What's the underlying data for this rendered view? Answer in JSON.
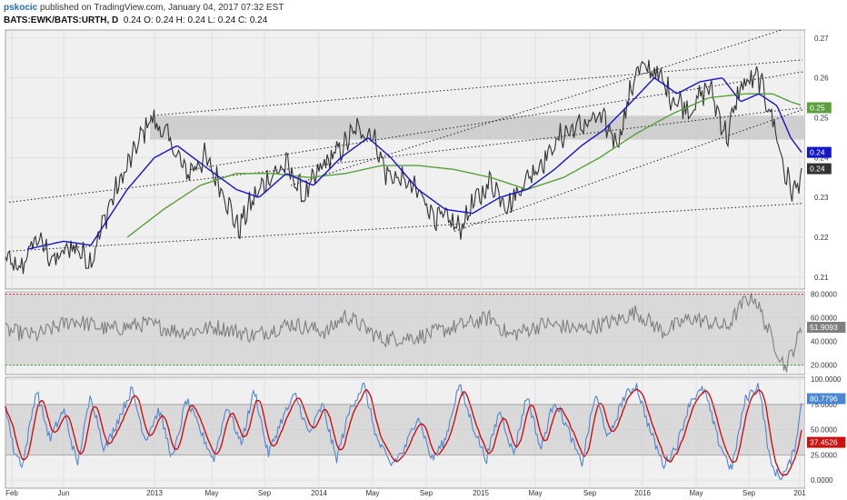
{
  "header": {
    "user": "pskocic",
    "published_text": "published on TradingView.com, January 04, 2017 07:32 EST",
    "symbol": "BATS:EWK/BATS:URTH, D",
    "ohlc_text": "0.24 O: 0.24 H: 0.24 L: 0.24 C: 0.24"
  },
  "colors": {
    "price": "#333333",
    "ma_fast": "#1414c8",
    "ma_slow": "#5aa03c",
    "rsi": "#7f7f7f",
    "stoch_k": "#4a86d6",
    "stoch_d": "#cc1111",
    "band": "#c9c9c9",
    "rsi_upper": "#e02020",
    "rsi_lower": "#2f9e2f",
    "bg": "#f0f0f0"
  },
  "chart_data": [
    {
      "type": "line",
      "panel": "price",
      "x_tick_labels": [
        "Feb",
        "Jun",
        "2013",
        "May",
        "Sep",
        "2014",
        "May",
        "Sep",
        "2015",
        "May",
        "Sep",
        "2016",
        "May",
        "Sep",
        "201"
      ],
      "y_tick_labels": [
        "0.27",
        "0.26",
        "0.25",
        "0.24",
        "0.23",
        "0.22",
        "0.21"
      ],
      "ylim": [
        0.207,
        0.272
      ],
      "price_anchors": [
        [
          0,
          0.217
        ],
        [
          20,
          0.211
        ],
        [
          40,
          0.22
        ],
        [
          60,
          0.214
        ],
        [
          80,
          0.218
        ],
        [
          100,
          0.214
        ],
        [
          120,
          0.228
        ],
        [
          145,
          0.24
        ],
        [
          165,
          0.25
        ],
        [
          185,
          0.245
        ],
        [
          205,
          0.236
        ],
        [
          225,
          0.24
        ],
        [
          245,
          0.232
        ],
        [
          262,
          0.222
        ],
        [
          275,
          0.228
        ],
        [
          295,
          0.235
        ],
        [
          315,
          0.238
        ],
        [
          335,
          0.23
        ],
        [
          355,
          0.238
        ],
        [
          375,
          0.242
        ],
        [
          392,
          0.247
        ],
        [
          410,
          0.246
        ],
        [
          425,
          0.236
        ],
        [
          445,
          0.234
        ],
        [
          465,
          0.23
        ],
        [
          480,
          0.225
        ],
        [
          495,
          0.224
        ],
        [
          505,
          0.222
        ],
        [
          520,
          0.228
        ],
        [
          540,
          0.234
        ],
        [
          560,
          0.228
        ],
        [
          580,
          0.235
        ],
        [
          600,
          0.24
        ],
        [
          620,
          0.246
        ],
        [
          640,
          0.248
        ],
        [
          660,
          0.25
        ],
        [
          680,
          0.244
        ],
        [
          700,
          0.262
        ],
        [
          720,
          0.262
        ],
        [
          740,
          0.255
        ],
        [
          760,
          0.252
        ],
        [
          780,
          0.258
        ],
        [
          800,
          0.245
        ],
        [
          815,
          0.258
        ],
        [
          835,
          0.26
        ],
        [
          850,
          0.25
        ],
        [
          865,
          0.235
        ],
        [
          874,
          0.231
        ],
        [
          883,
          0.237
        ]
      ],
      "ma_fast_anchors": [
        [
          30,
          0.217
        ],
        [
          70,
          0.219
        ],
        [
          100,
          0.218
        ],
        [
          140,
          0.232
        ],
        [
          170,
          0.24
        ],
        [
          195,
          0.243
        ],
        [
          230,
          0.237
        ],
        [
          260,
          0.232
        ],
        [
          285,
          0.23
        ],
        [
          315,
          0.236
        ],
        [
          345,
          0.233
        ],
        [
          375,
          0.24
        ],
        [
          405,
          0.245
        ],
        [
          430,
          0.24
        ],
        [
          460,
          0.232
        ],
        [
          490,
          0.227
        ],
        [
          520,
          0.226
        ],
        [
          550,
          0.23
        ],
        [
          580,
          0.232
        ],
        [
          610,
          0.237
        ],
        [
          640,
          0.243
        ],
        [
          665,
          0.247
        ],
        [
          695,
          0.254
        ],
        [
          720,
          0.26
        ],
        [
          745,
          0.256
        ],
        [
          770,
          0.259
        ],
        [
          795,
          0.26
        ],
        [
          815,
          0.254
        ],
        [
          835,
          0.256
        ],
        [
          855,
          0.253
        ],
        [
          870,
          0.245
        ],
        [
          883,
          0.241
        ]
      ],
      "ma_slow_anchors": [
        [
          140,
          0.22
        ],
        [
          180,
          0.227
        ],
        [
          220,
          0.233
        ],
        [
          260,
          0.236
        ],
        [
          300,
          0.236
        ],
        [
          340,
          0.235
        ],
        [
          380,
          0.236
        ],
        [
          420,
          0.238
        ],
        [
          460,
          0.238
        ],
        [
          500,
          0.237
        ],
        [
          540,
          0.235
        ],
        [
          580,
          0.232
        ],
        [
          620,
          0.235
        ],
        [
          660,
          0.24
        ],
        [
          700,
          0.246
        ],
        [
          740,
          0.251
        ],
        [
          780,
          0.255
        ],
        [
          820,
          0.256
        ],
        [
          850,
          0.256
        ],
        [
          870,
          0.254
        ],
        [
          883,
          0.253
        ]
      ],
      "band": [
        0.2445,
        0.2505
      ],
      "trendlines": [
        [
          [
            10,
            0.2165
          ],
          [
            883,
            0.2285
          ]
        ],
        [
          [
            10,
            0.2288
          ],
          [
            883,
            0.2525
          ]
        ],
        [
          [
            165,
            0.2505
          ],
          [
            883,
            0.2645
          ]
        ],
        [
          [
            210,
            0.237
          ],
          [
            883,
            0.2615
          ]
        ],
        [
          [
            320,
            0.233
          ],
          [
            860,
            0.272
          ]
        ],
        [
          [
            500,
            0.2215
          ],
          [
            883,
            0.252
          ]
        ]
      ],
      "last_labels": {
        "ma_slow": "0.25",
        "ma_fast": "0.24",
        "price": "0.24"
      }
    },
    {
      "type": "line",
      "panel": "rsi",
      "y_tick_labels": [
        "80.0000",
        "60.0000",
        "40.0000",
        "20.0000"
      ],
      "ylim": [
        12,
        82
      ],
      "upper": 80,
      "lower": 20,
      "anchors": [
        [
          0,
          50
        ],
        [
          40,
          45
        ],
        [
          80,
          58
        ],
        [
          120,
          50
        ],
        [
          160,
          55
        ],
        [
          200,
          48
        ],
        [
          240,
          52
        ],
        [
          280,
          45
        ],
        [
          320,
          55
        ],
        [
          360,
          48
        ],
        [
          380,
          62
        ],
        [
          420,
          42
        ],
        [
          460,
          44
        ],
        [
          500,
          52
        ],
        [
          520,
          56
        ],
        [
          540,
          60
        ],
        [
          560,
          45
        ],
        [
          600,
          55
        ],
        [
          640,
          50
        ],
        [
          680,
          58
        ],
        [
          700,
          65
        ],
        [
          730,
          48
        ],
        [
          760,
          60
        ],
        [
          800,
          52
        ],
        [
          820,
          75
        ],
        [
          830,
          78
        ],
        [
          845,
          50
        ],
        [
          858,
          28
        ],
        [
          864,
          18
        ],
        [
          872,
          32
        ],
        [
          883,
          52
        ]
      ],
      "last_label": "51.9093"
    },
    {
      "type": "line",
      "panel": "stochastic",
      "y_tick_labels": [
        "100.0000",
        "75.0000",
        "50.0000",
        "25.0000",
        "0.0000"
      ],
      "ylim": [
        -8,
        102
      ],
      "band": [
        25,
        75
      ],
      "k_anchors": [
        [
          0,
          45
        ],
        [
          5,
          80
        ],
        [
          15,
          30
        ],
        [
          25,
          15
        ],
        [
          40,
          90
        ],
        [
          55,
          40
        ],
        [
          70,
          70
        ],
        [
          85,
          15
        ],
        [
          100,
          85
        ],
        [
          115,
          30
        ],
        [
          130,
          60
        ],
        [
          145,
          90
        ],
        [
          160,
          40
        ],
        [
          175,
          70
        ],
        [
          190,
          20
        ],
        [
          205,
          80
        ],
        [
          220,
          50
        ],
        [
          235,
          20
        ],
        [
          250,
          75
        ],
        [
          265,
          35
        ],
        [
          280,
          90
        ],
        [
          295,
          25
        ],
        [
          310,
          60
        ],
        [
          325,
          85
        ],
        [
          340,
          45
        ],
        [
          355,
          75
        ],
        [
          370,
          20
        ],
        [
          385,
          70
        ],
        [
          400,
          95
        ],
        [
          415,
          40
        ],
        [
          430,
          15
        ],
        [
          445,
          30
        ],
        [
          460,
          65
        ],
        [
          475,
          20
        ],
        [
          490,
          40
        ],
        [
          505,
          95
        ],
        [
          520,
          55
        ],
        [
          535,
          20
        ],
        [
          550,
          70
        ],
        [
          565,
          25
        ],
        [
          580,
          85
        ],
        [
          595,
          30
        ],
        [
          610,
          80
        ],
        [
          625,
          50
        ],
        [
          640,
          15
        ],
        [
          655,
          85
        ],
        [
          670,
          40
        ],
        [
          685,
          80
        ],
        [
          700,
          95
        ],
        [
          715,
          50
        ],
        [
          730,
          15
        ],
        [
          745,
          35
        ],
        [
          760,
          80
        ],
        [
          775,
          90
        ],
        [
          790,
          40
        ],
        [
          805,
          10
        ],
        [
          820,
          80
        ],
        [
          835,
          95
        ],
        [
          848,
          15
        ],
        [
          858,
          3
        ],
        [
          866,
          10
        ],
        [
          874,
          30
        ],
        [
          883,
          81
        ]
      ],
      "d_window": 6,
      "last_labels": {
        "k": "80.7796",
        "d": "37.4526"
      }
    }
  ]
}
